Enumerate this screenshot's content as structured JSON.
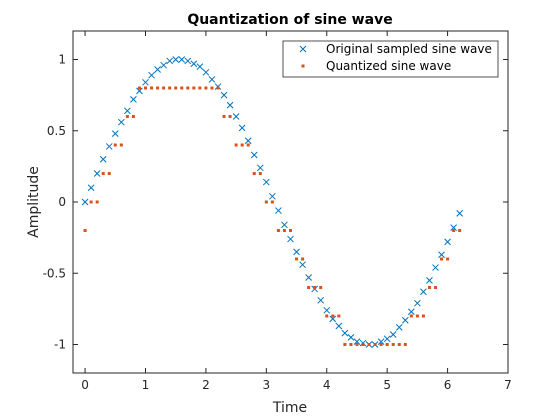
{
  "chart_data": {
    "type": "scatter",
    "title": "Quantization of sine wave",
    "xlabel": "Time",
    "ylabel": "Amplitude",
    "xlim": [
      -0.2,
      7
    ],
    "ylim": [
      -1.2,
      1.2
    ],
    "x_ticks": [
      0,
      1,
      2,
      3,
      4,
      5,
      6,
      7
    ],
    "x_tick_labels": [
      "0",
      "1",
      "2",
      "3",
      "4",
      "5",
      "6",
      "7"
    ],
    "y_ticks": [
      -1,
      -0.5,
      0,
      0.5,
      1
    ],
    "y_tick_labels": [
      "-1",
      "-0.5",
      "0",
      "0.5",
      "1"
    ],
    "grid": false,
    "legend_position": "top-right",
    "x": [
      0,
      0.1,
      0.2,
      0.3,
      0.4,
      0.5,
      0.6,
      0.7,
      0.8,
      0.9,
      1.0,
      1.1,
      1.2,
      1.3,
      1.4,
      1.5,
      1.6,
      1.7,
      1.8,
      1.9,
      2.0,
      2.1,
      2.2,
      2.3,
      2.4,
      2.5,
      2.6,
      2.7,
      2.8,
      2.9,
      3.0,
      3.1,
      3.2,
      3.3,
      3.4,
      3.5,
      3.6,
      3.7,
      3.8,
      3.9,
      4.0,
      4.1,
      4.2,
      4.3,
      4.4,
      4.5,
      4.6,
      4.7,
      4.8,
      4.9,
      5.0,
      5.1,
      5.2,
      5.3,
      5.4,
      5.5,
      5.6,
      5.7,
      5.8,
      5.9,
      6.0,
      6.1,
      6.2
    ],
    "series": [
      {
        "name": "Original sampled sine wave",
        "marker": "x",
        "color": "#0072BD",
        "values": [
          0,
          0.1,
          0.2,
          0.3,
          0.39,
          0.48,
          0.56,
          0.64,
          0.72,
          0.78,
          0.84,
          0.89,
          0.93,
          0.96,
          0.99,
          1.0,
          1.0,
          0.99,
          0.97,
          0.95,
          0.91,
          0.86,
          0.81,
          0.75,
          0.68,
          0.6,
          0.52,
          0.43,
          0.33,
          0.24,
          0.14,
          0.04,
          -0.06,
          -0.16,
          -0.26,
          -0.35,
          -0.44,
          -0.53,
          -0.61,
          -0.69,
          -0.76,
          -0.82,
          -0.87,
          -0.92,
          -0.95,
          -0.98,
          -0.99,
          -1.0,
          -1.0,
          -0.98,
          -0.96,
          -0.93,
          -0.88,
          -0.83,
          -0.77,
          -0.71,
          -0.63,
          -0.55,
          -0.46,
          -0.37,
          -0.28,
          -0.18,
          -0.08
        ]
      },
      {
        "name": "Quantized sine wave",
        "marker": "square",
        "color": "#D95319",
        "values": [
          -0.2,
          0,
          0,
          0.2,
          0.2,
          0.4,
          0.4,
          0.6,
          0.6,
          0.8,
          0.8,
          0.8,
          0.8,
          0.8,
          0.8,
          0.8,
          0.8,
          0.8,
          0.8,
          0.8,
          0.8,
          0.8,
          0.8,
          0.6,
          0.6,
          0.4,
          0.4,
          0.4,
          0.2,
          0.2,
          0,
          0,
          -0.2,
          -0.2,
          -0.2,
          -0.4,
          -0.4,
          -0.6,
          -0.6,
          -0.6,
          -0.8,
          -0.8,
          -0.8,
          -1.0,
          -1.0,
          -1.0,
          -1.0,
          -1.0,
          -1.0,
          -1.0,
          -1.0,
          -1.0,
          -1.0,
          -1.0,
          -0.8,
          -0.8,
          -0.8,
          -0.6,
          -0.6,
          -0.4,
          -0.4,
          -0.2,
          -0.2
        ]
      }
    ]
  }
}
